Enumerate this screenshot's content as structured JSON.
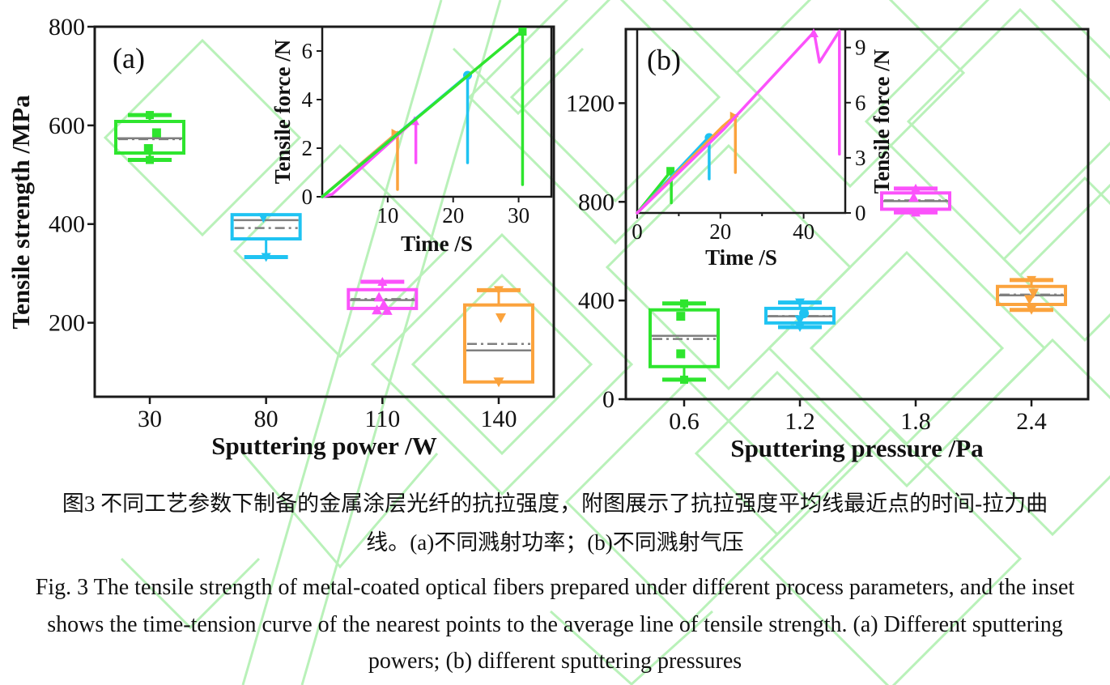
{
  "meta": {
    "watermark_color": "#b9f1b9",
    "frame_color": "#1a1a1a",
    "text_color": "#111111",
    "median_color": "#7f7f7f",
    "series_colors": {
      "green": "#2ee52e",
      "cyan": "#1fc3f2",
      "magenta": "#fb52fb",
      "orange": "#fba33d"
    }
  },
  "captions": {
    "cn_line1": "图3  不同工艺参数下制备的金属涂层光纤的抗拉强度，附图展示了抗拉强度平均线最近点的时间-拉力曲",
    "cn_line2": "线。(a)不同溅射功率；(b)不同溅射气压",
    "en_line1": "Fig. 3 The tensile strength of metal-coated optical fibers prepared under different process parameters, and the inset",
    "en_line2": "shows the time-tension curve of the nearest points to the average line of tensile strength. (a) Different sputtering",
    "en_line3": "powers; (b) different sputtering pressures"
  },
  "chart_data": [
    {
      "id": "a",
      "type": "box",
      "label": "(a)",
      "xlabel": "Sputtering power /W",
      "ylabel": "Tensile strength /MPa",
      "ylim": [
        50,
        800
      ],
      "yticks": [
        200,
        400,
        600,
        800
      ],
      "categories": [
        "30",
        "80",
        "110",
        "140"
      ],
      "boxes": [
        {
          "category": "30",
          "color": "#2ee52e",
          "marker": "square",
          "whisker_low": 530,
          "q1": 544,
          "median": 574,
          "mean": 572,
          "q3": 608,
          "whisker_high": 621,
          "cap_marker_high": true,
          "cap_marker_low": true,
          "points": [
            {
              "value": 585,
              "dx": 0.1
            },
            {
              "value": 553,
              "dx": -0.02
            }
          ]
        },
        {
          "category": "80",
          "color": "#1fc3f2",
          "marker": "triangle-down",
          "whisker_low": 333,
          "q1": 370,
          "median": 408,
          "mean": 392,
          "q3": 419,
          "whisker_high": 419,
          "cap_marker_high": false,
          "cap_marker_low": true,
          "points": [
            {
              "value": 413,
              "dx": -0.04
            }
          ]
        },
        {
          "category": "110",
          "color": "#fb52fb",
          "marker": "triangle-up",
          "whisker_low": 229,
          "q1": 229,
          "median": 246,
          "mean": 248,
          "q3": 267,
          "whisker_high": 283,
          "cap_marker_high": true,
          "cap_marker_low": false,
          "points": [
            {
              "value": 252,
              "dx": -0.05
            },
            {
              "value": 237,
              "dx": 0.02
            },
            {
              "value": 226,
              "dx": -0.08
            },
            {
              "value": 225,
              "dx": 0.07
            }
          ]
        },
        {
          "category": "140",
          "color": "#fba33d",
          "marker": "triangle-down",
          "whisker_low": 80,
          "q1": 80,
          "median": 144,
          "mean": 157,
          "q3": 236,
          "whisker_high": 266,
          "cap_marker_high": true,
          "cap_marker_low": false,
          "points": [
            {
              "value": 210,
              "dx": 0.03
            },
            {
              "value": 80,
              "dx": 0.0
            }
          ]
        }
      ],
      "inset": {
        "xlabel": "Time /S",
        "ylabel": "Tensile force /N",
        "y_axis_side": "left",
        "xlim": [
          0,
          35
        ],
        "xticks": [
          10,
          20,
          30
        ],
        "minor_xticks": [],
        "ylim": [
          0,
          7
        ],
        "yticks": [
          0,
          2,
          4,
          6
        ],
        "curves": [
          {
            "color": "#fba33d",
            "points": [
              [
                0,
                0
              ],
              [
                11.5,
                2.65
              ],
              [
                11.5,
                0.3
              ]
            ],
            "marker": {
              "shape": "triangle-right",
              "at": [
                11.2,
                2.6
              ]
            }
          },
          {
            "color": "#fb52fb",
            "points": [
              [
                0,
                0
              ],
              [
                1.5,
                0.1
              ],
              [
                14.3,
                3.2
              ],
              [
                14.3,
                1.4
              ]
            ],
            "marker": {
              "shape": "triangle-up",
              "at": [
                14.1,
                3.12
              ]
            }
          },
          {
            "color": "#1fc3f2",
            "points": [
              [
                0,
                0
              ],
              [
                22.2,
                5.0
              ],
              [
                22.2,
                1.4
              ]
            ],
            "marker": {
              "shape": "circle",
              "at": [
                22.2,
                5.0
              ]
            }
          },
          {
            "color": "#2ee52e",
            "points": [
              [
                0,
                0
              ],
              [
                30.6,
                6.85
              ],
              [
                30.6,
                0.5
              ]
            ],
            "marker": {
              "shape": "square",
              "at": [
                30.6,
                6.8
              ]
            }
          }
        ]
      }
    },
    {
      "id": "b",
      "type": "box",
      "label": "(b)",
      "xlabel": "Sputtering pressure /Pa",
      "ylabel": null,
      "ylim": [
        0,
        1500
      ],
      "yticks": [
        0,
        400,
        800,
        1200
      ],
      "categories": [
        "0.6",
        "1.2",
        "1.8",
        "2.4"
      ],
      "boxes": [
        {
          "category": "0.6",
          "color": "#2ee52e",
          "marker": "square",
          "whisker_low": 79,
          "q1": 132,
          "median": 257,
          "mean": 244,
          "q3": 362,
          "whisker_high": 388,
          "cap_marker_high": true,
          "cap_marker_low": true,
          "points": [
            {
              "value": 336,
              "dx": -0.05
            },
            {
              "value": 184,
              "dx": -0.05
            }
          ]
        },
        {
          "category": "1.2",
          "color": "#1fc3f2",
          "marker": "triangle-down",
          "whisker_low": 292,
          "q1": 309,
          "median": 336,
          "mean": 337,
          "q3": 368,
          "whisker_high": 392,
          "cap_marker_high": true,
          "cap_marker_low": true,
          "points": [
            {
              "value": 348,
              "dx": 0.06,
              "shape": "circle"
            },
            {
              "value": 322,
              "dx": 0.0
            }
          ]
        },
        {
          "category": "1.8",
          "color": "#fb52fb",
          "marker": "triangle-up",
          "whisker_low": 757,
          "q1": 770,
          "median": 803,
          "mean": 806,
          "q3": 836,
          "whisker_high": 854,
          "cap_marker_high": true,
          "cap_marker_low": true,
          "points": [
            {
              "value": 818,
              "dx": -0.03
            }
          ]
        },
        {
          "category": "2.4",
          "color": "#fba33d",
          "marker": "triangle-down",
          "whisker_low": 362,
          "q1": 384,
          "median": 421,
          "mean": 424,
          "q3": 457,
          "whisker_high": 483,
          "cap_marker_high": true,
          "cap_marker_low": true,
          "points": [
            {
              "value": 430,
              "dx": 0.03
            },
            {
              "value": 404,
              "dx": -0.03
            }
          ]
        }
      ],
      "inset": {
        "xlabel": "Time /S",
        "ylabel": "Tensile force /N",
        "y_axis_side": "right",
        "xlim": [
          0,
          50
        ],
        "xticks": [
          0,
          20,
          40
        ],
        "minor_xticks": [
          10,
          30
        ],
        "ylim": [
          0,
          10
        ],
        "yticks": [
          0,
          3,
          6,
          9
        ],
        "curves": [
          {
            "color": "#2ee52e",
            "points": [
              [
                0,
                0
              ],
              [
                8.2,
                2.3
              ],
              [
                8.2,
                0.55
              ]
            ],
            "marker": {
              "shape": "square",
              "at": [
                8.0,
                2.28
              ]
            }
          },
          {
            "color": "#1fc3f2",
            "points": [
              [
                0,
                0
              ],
              [
                17.3,
                4.15
              ],
              [
                17.3,
                1.85
              ]
            ],
            "marker": {
              "shape": "circle",
              "at": [
                17.3,
                4.1
              ]
            }
          },
          {
            "color": "#fba33d",
            "points": [
              [
                0,
                0
              ],
              [
                20.5,
                4.7
              ],
              [
                23.6,
                5.3
              ],
              [
                23.6,
                2.2
              ]
            ],
            "marker": {
              "shape": "triangle-right",
              "at": [
                23.3,
                5.25
              ]
            }
          },
          {
            "color": "#fb52fb",
            "points": [
              [
                0,
                0
              ],
              [
                21,
                4.6
              ],
              [
                42.5,
                9.85
              ],
              [
                43.8,
                8.2
              ],
              [
                48.6,
                9.9
              ],
              [
                48.6,
                3.2
              ]
            ],
            "marker": {
              "shape": "triangle-up",
              "at": [
                42.4,
                9.78
              ]
            }
          }
        ]
      }
    }
  ]
}
